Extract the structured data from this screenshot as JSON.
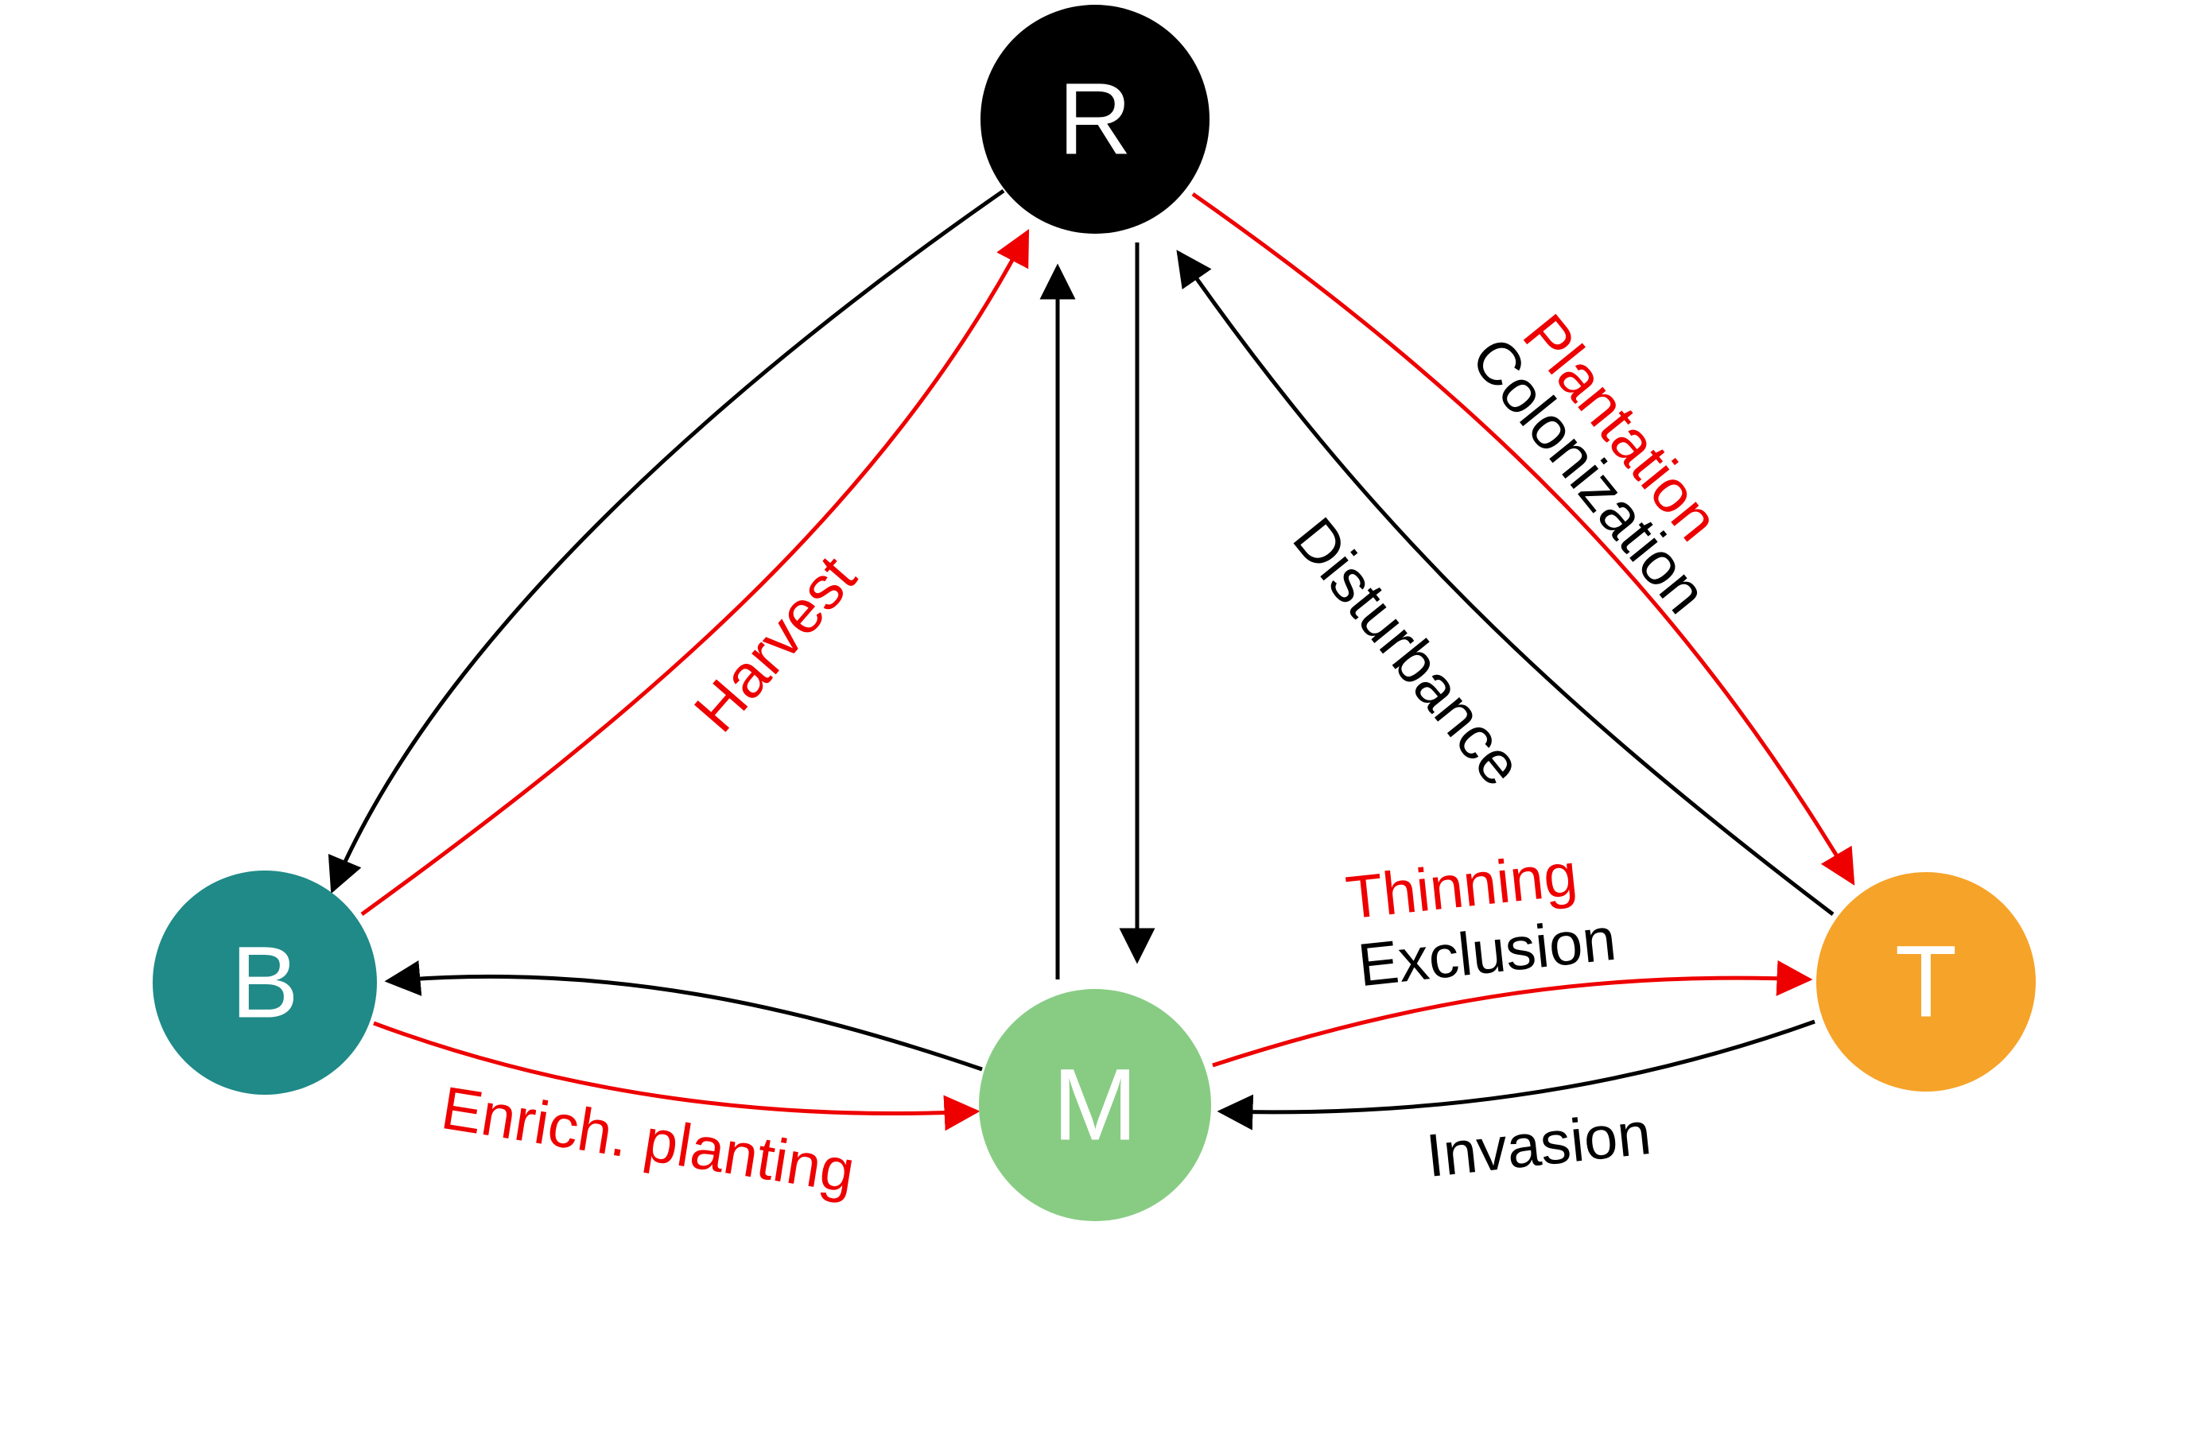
{
  "colors": {
    "natural": "#000000",
    "managed": "#ee0000",
    "node_R": "#000000",
    "node_B": "#1f8a87",
    "node_M": "#88cc84",
    "node_T": "#f6a329",
    "node_text": "#ffffff"
  },
  "nodes": {
    "R": {
      "label": "R"
    },
    "B": {
      "label": "B"
    },
    "M": {
      "label": "M"
    },
    "T": {
      "label": "T"
    }
  },
  "labels": {
    "harvest": "Harvest",
    "plantation": "Plantation",
    "colonization": "Colonization",
    "disturbance": "Disturbance",
    "thinning": "Thinning",
    "exclusion": "Exclusion",
    "enrichment_planting": "Enrich. planting",
    "invasion": "Invasion"
  },
  "edges": [
    {
      "from": "R",
      "to": "B",
      "kind": "natural"
    },
    {
      "from": "B",
      "to": "R",
      "kind": "managed"
    },
    {
      "from": "M",
      "to": "R",
      "kind": "natural"
    },
    {
      "from": "R",
      "to": "M",
      "kind": "natural"
    },
    {
      "from": "R",
      "to": "T",
      "kind": "managed"
    },
    {
      "from": "T",
      "to": "R",
      "kind": "natural"
    },
    {
      "from": "M",
      "to": "B",
      "kind": "natural"
    },
    {
      "from": "B",
      "to": "M",
      "kind": "managed"
    },
    {
      "from": "M",
      "to": "T",
      "kind": "managed"
    },
    {
      "from": "T",
      "to": "M",
      "kind": "natural"
    }
  ]
}
